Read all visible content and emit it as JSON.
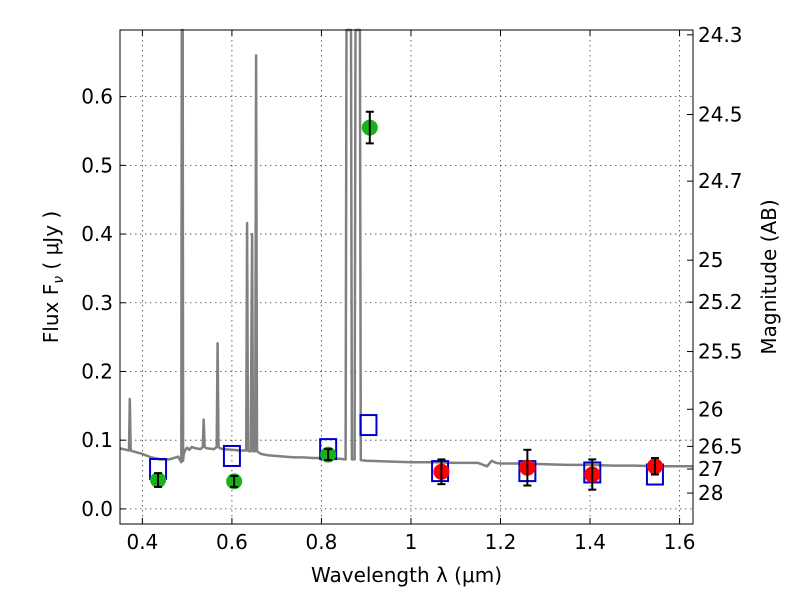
{
  "chart_data": {
    "type": "scatter",
    "title": "",
    "xlabel": "Wavelength  λ (μm)",
    "ylabel": "Flux  F",
    "ylabel_sub": "ν",
    "ylabel_unit": "  ( μJy )",
    "ylabel_right": "Magnitude (AB)",
    "xlim": [
      0.35,
      1.63
    ],
    "ylim": [
      -0.022,
      0.697
    ],
    "grid": true,
    "x_ticks": [
      0.4,
      0.6,
      0.8,
      1.0,
      1.2,
      1.4,
      1.6
    ],
    "x_tick_labels": [
      "0.4",
      "0.6",
      "0.8",
      "1",
      "1.2",
      "1.4",
      "1.6"
    ],
    "y_ticks": [
      0.0,
      0.1,
      0.2,
      0.3,
      0.4,
      0.5,
      0.6
    ],
    "y_tick_labels": [
      "0.0",
      "0.1",
      "0.2",
      "0.3",
      "0.4",
      "0.5",
      "0.6"
    ],
    "y_right_ticks": [
      {
        "label": "24.3",
        "flux": 0.69
      },
      {
        "label": "24.5",
        "flux": 0.574
      },
      {
        "label": "24.7",
        "flux": 0.477
      },
      {
        "label": "25",
        "flux": 0.362
      },
      {
        "label": "25.2",
        "flux": 0.301
      },
      {
        "label": "25.5",
        "flux": 0.229
      },
      {
        "label": "26",
        "flux": 0.145
      },
      {
        "label": "26.5",
        "flux": 0.091
      },
      {
        "label": "27",
        "flux": 0.058
      },
      {
        "label": "28",
        "flux": 0.023
      }
    ],
    "series": [
      {
        "type": "line",
        "color": "#808080",
        "x": [
          0.35,
          0.37,
          0.372,
          0.374,
          0.378,
          0.4,
          0.42,
          0.44,
          0.46,
          0.48,
          0.487,
          0.488,
          0.489,
          0.49,
          0.491,
          0.492,
          0.495,
          0.5,
          0.505,
          0.51,
          0.52,
          0.53,
          0.535,
          0.537,
          0.539,
          0.541,
          0.545,
          0.56,
          0.566,
          0.568,
          0.57,
          0.574,
          0.58,
          0.6,
          0.62,
          0.632,
          0.634,
          0.636,
          0.638,
          0.642,
          0.645,
          0.647,
          0.649,
          0.652,
          0.654,
          0.656,
          0.658,
          0.66,
          0.665,
          0.68,
          0.7,
          0.72,
          0.74,
          0.76,
          0.78,
          0.8,
          0.82,
          0.84,
          0.854,
          0.856,
          0.866,
          0.868,
          0.874,
          0.876,
          0.886,
          0.888,
          0.9,
          0.95,
          1.0,
          1.05,
          1.1,
          1.15,
          1.17,
          1.18,
          1.19,
          1.2,
          1.25,
          1.3,
          1.35,
          1.4,
          1.45,
          1.5,
          1.55,
          1.6,
          1.63
        ],
        "y": [
          0.088,
          0.085,
          0.16,
          0.085,
          0.084,
          0.08,
          0.075,
          0.072,
          0.072,
          0.076,
          0.068,
          0.7,
          0.7,
          0.7,
          0.07,
          0.078,
          0.085,
          0.089,
          0.086,
          0.09,
          0.088,
          0.087,
          0.09,
          0.13,
          0.09,
          0.089,
          0.088,
          0.087,
          0.09,
          0.241,
          0.09,
          0.088,
          0.087,
          0.086,
          0.085,
          0.085,
          0.416,
          0.085,
          0.084,
          0.084,
          0.4,
          0.084,
          0.084,
          0.084,
          0.66,
          0.084,
          0.083,
          0.082,
          0.08,
          0.078,
          0.077,
          0.076,
          0.075,
          0.075,
          0.074,
          0.074,
          0.073,
          0.073,
          0.072,
          0.7,
          0.7,
          0.072,
          0.072,
          0.7,
          0.7,
          0.071,
          0.07,
          0.069,
          0.068,
          0.068,
          0.067,
          0.067,
          0.062,
          0.07,
          0.067,
          0.066,
          0.066,
          0.065,
          0.064,
          0.064,
          0.063,
          0.063,
          0.062,
          0.062,
          0.062
        ]
      },
      {
        "type": "scatter",
        "marker": "square",
        "color": "#0000cc",
        "x": [
          0.435,
          0.6,
          0.815,
          0.905,
          1.065,
          1.26,
          1.405,
          1.545
        ],
        "y": [
          0.058,
          0.077,
          0.087,
          0.122,
          0.055,
          0.055,
          0.053,
          0.05
        ]
      },
      {
        "type": "scatter",
        "marker": "circle",
        "color": "#19b319",
        "x": [
          0.435,
          0.605,
          0.815,
          0.908
        ],
        "y": [
          0.042,
          0.04,
          0.079,
          0.555
        ],
        "yerr": [
          0.01,
          0.008,
          0.008,
          0.023
        ]
      },
      {
        "type": "scatter",
        "marker": "circle",
        "color": "#ff0000",
        "x": [
          1.068,
          1.26,
          1.405,
          1.545
        ],
        "y": [
          0.054,
          0.06,
          0.05,
          0.062
        ],
        "yerr": [
          0.018,
          0.026,
          0.022,
          0.012
        ]
      }
    ]
  }
}
